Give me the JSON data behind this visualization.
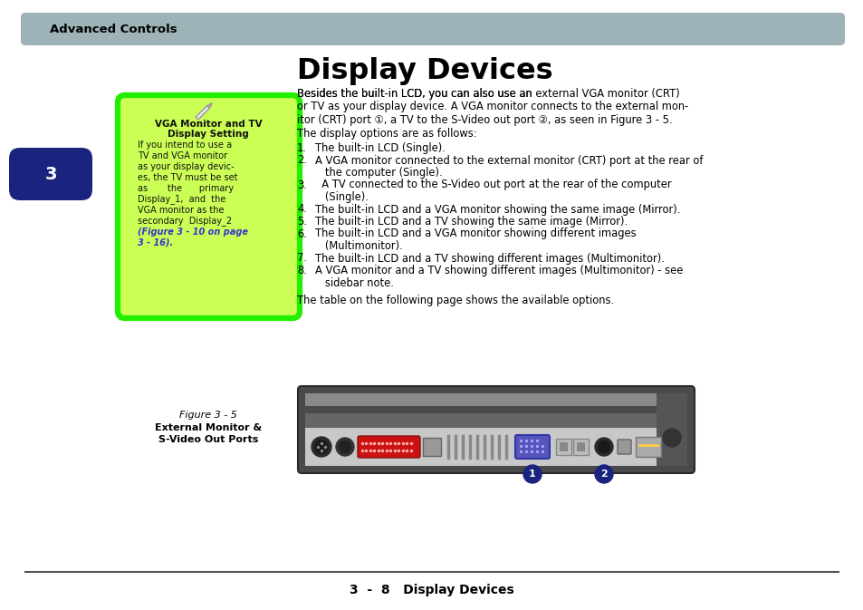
{
  "page_bg": "#ffffff",
  "header_bg": "#9eb3b8",
  "header_text": "Advanced Controls",
  "header_text_color": "#000000",
  "tab_bg": "#1a237e",
  "tab_text": "3",
  "tab_text_color": "#ffffff",
  "sidebar_bg": "#ccff55",
  "sidebar_border": "#22ee00",
  "sidebar_title1": "VGA Monitor and TV",
  "sidebar_title2": "Display Setting",
  "sidebar_lines": [
    "If you intend to use a",
    "TV and VGA monitor",
    "as your display devic-",
    "es, the TV must be set",
    "as       the      primary",
    "Display_1,  and  the",
    "VGA monitor as the",
    "secondary  Display_2",
    "(Figure 3 - 10 on page",
    "3 - 16)."
  ],
  "sidebar_bold_lines": [
    5,
    7
  ],
  "sidebar_link_lines": [
    8,
    9
  ],
  "main_title": "Display Devices",
  "intro_line1": "Besides the built-in LCD, you can also use an ",
  "intro_line1_bold": "external VGA monitor",
  "intro_line1_end": " (CRT)",
  "intro_line2": "or ",
  "intro_line2_bold": "TV",
  "intro_line2_end": " as your display device. A VGA monitor connects to the external mon-",
  "intro_line3": "itor (CRT) port ①, a TV to the S-Video out port ②, as seen in ",
  "intro_line3_link": "Figure 3 - 5",
  "intro_line3_end": ".",
  "intro_line4": "The display options are as follows:",
  "list_items": [
    {
      "num": "1.",
      "text": "The built-in LCD (",
      "bold": "Single",
      "end": ")."
    },
    {
      "num": "2.",
      "text": "A VGA monitor connected to the external monitor (CRT) port at the rear of",
      "bold": "",
      "end": ""
    },
    {
      "num": "",
      "text": "   the computer (",
      "bold": "Single",
      "end": ")."
    },
    {
      "num": "3.",
      "text": "  A TV connected to the S-Video out port at the rear of the computer",
      "bold": "",
      "end": ""
    },
    {
      "num": "",
      "text": "   (",
      "bold": "Single",
      "end": ")."
    },
    {
      "num": "4.",
      "text": "The built-in LCD and a VGA monitor showing the same image (",
      "bold": "Mirror",
      "end": ")."
    },
    {
      "num": "5.",
      "text": "The built-in LCD and a TV showing the same image (",
      "bold": "Mirror",
      "end": ")."
    },
    {
      "num": "6.",
      "text": "The built-in LCD and a VGA monitor showing different images",
      "bold": "",
      "end": ""
    },
    {
      "num": "",
      "text": "   (",
      "bold": "Multimonitor",
      "end": ")."
    },
    {
      "num": "7.",
      "text": "The built-in LCD and a TV showing different images (",
      "bold": "Multimonitor",
      "end": ")."
    },
    {
      "num": "8.",
      "text": "A VGA monitor and a TV showing different images (",
      "bold": "Multimonitor",
      "end": ") - see"
    },
    {
      "num": "",
      "text": "   sidebar note.",
      "bold": "",
      "end": ""
    }
  ],
  "closing_text": "The table on the following page shows the available options.",
  "figure_label": "Figure 3 - 5",
  "figure_caption1": "External Monitor &",
  "figure_caption2": "S-Video Out Ports",
  "footer_text": "3  -  8   Display Devices",
  "footer_line_color": "#555555",
  "circle1_color": "#1a237e",
  "circle2_color": "#1a237e",
  "link_color": "#3333cc"
}
